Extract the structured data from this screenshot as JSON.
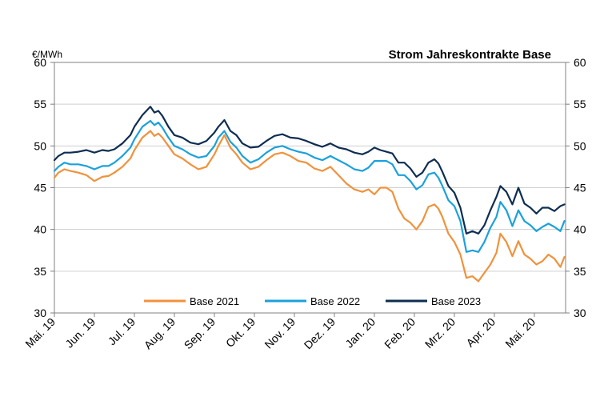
{
  "chart_data": {
    "type": "line",
    "title": "Strom Jahreskontrakte Base",
    "ylabel": "€/MWh",
    "xlabel": "",
    "ylim": [
      30,
      60
    ],
    "yticks": [
      30,
      35,
      40,
      45,
      50,
      55,
      60
    ],
    "xlim": [
      0,
      12.75
    ],
    "xticks": [
      {
        "label": "Mai. 19",
        "x": 0
      },
      {
        "label": "Jun. 19",
        "x": 1
      },
      {
        "label": "Jul. 19",
        "x": 2
      },
      {
        "label": "Aug. 19",
        "x": 3
      },
      {
        "label": "Sep. 19",
        "x": 4
      },
      {
        "label": "Okt. 19",
        "x": 5
      },
      {
        "label": "Nov. 19",
        "x": 6
      },
      {
        "label": "Dez. 19",
        "x": 7
      },
      {
        "label": "Jan. 20",
        "x": 8
      },
      {
        "label": "Feb. 20",
        "x": 9
      },
      {
        "label": "Mrz. 20",
        "x": 10
      },
      {
        "label": "Apr. 20",
        "x": 11
      },
      {
        "label": "Mai. 20",
        "x": 12
      }
    ],
    "grid": true,
    "legend_position": "bottom-center",
    "series": [
      {
        "name": "Base 2021",
        "color": "#F0923C",
        "x": [
          0,
          0.1,
          0.25,
          0.4,
          0.6,
          0.8,
          1.0,
          1.2,
          1.35,
          1.5,
          1.7,
          1.9,
          2.0,
          2.2,
          2.4,
          2.5,
          2.6,
          2.7,
          2.85,
          3.0,
          3.2,
          3.4,
          3.6,
          3.8,
          4.0,
          4.1,
          4.25,
          4.4,
          4.55,
          4.7,
          4.9,
          5.1,
          5.3,
          5.5,
          5.7,
          5.9,
          6.1,
          6.3,
          6.5,
          6.7,
          6.9,
          7.1,
          7.3,
          7.5,
          7.7,
          7.85,
          8.0,
          8.15,
          8.3,
          8.45,
          8.6,
          8.75,
          8.9,
          9.05,
          9.2,
          9.35,
          9.5,
          9.6,
          9.7,
          9.85,
          10.0,
          10.15,
          10.3,
          10.45,
          10.6,
          10.75,
          10.9,
          11.05,
          11.15,
          11.3,
          11.45,
          11.6,
          11.75,
          11.9,
          12.05,
          12.2,
          12.35,
          12.5,
          12.65,
          12.75
        ],
        "values": [
          46.2,
          46.8,
          47.2,
          47.0,
          46.8,
          46.5,
          45.8,
          46.3,
          46.4,
          46.8,
          47.5,
          48.5,
          49.5,
          51.0,
          51.8,
          51.2,
          51.5,
          51.0,
          50.0,
          49.0,
          48.5,
          47.8,
          47.2,
          47.5,
          49.0,
          50.0,
          51.3,
          49.8,
          49.0,
          48.0,
          47.2,
          47.5,
          48.3,
          49.0,
          49.2,
          48.8,
          48.2,
          48.0,
          47.3,
          47.0,
          47.5,
          46.5,
          45.5,
          44.8,
          44.5,
          44.8,
          44.2,
          45.0,
          45.0,
          44.5,
          42.5,
          41.3,
          40.8,
          40.0,
          41.0,
          42.7,
          43.0,
          42.5,
          41.5,
          39.5,
          38.5,
          37.0,
          34.2,
          34.4,
          33.8,
          34.8,
          35.8,
          37.2,
          39.5,
          38.5,
          36.8,
          38.6,
          37.0,
          36.5,
          35.8,
          36.2,
          37.0,
          36.5,
          35.5,
          36.7
        ]
      },
      {
        "name": "Base 2022",
        "color": "#1BA1DB",
        "x": [
          0,
          0.1,
          0.25,
          0.4,
          0.6,
          0.8,
          1.0,
          1.2,
          1.35,
          1.5,
          1.7,
          1.9,
          2.0,
          2.2,
          2.4,
          2.5,
          2.6,
          2.7,
          2.85,
          3.0,
          3.2,
          3.4,
          3.6,
          3.8,
          4.0,
          4.1,
          4.25,
          4.4,
          4.55,
          4.7,
          4.9,
          5.1,
          5.3,
          5.5,
          5.7,
          5.9,
          6.1,
          6.3,
          6.5,
          6.7,
          6.9,
          7.1,
          7.3,
          7.5,
          7.7,
          7.85,
          8.0,
          8.15,
          8.3,
          8.45,
          8.6,
          8.75,
          8.9,
          9.05,
          9.2,
          9.35,
          9.5,
          9.6,
          9.7,
          9.85,
          10.0,
          10.15,
          10.3,
          10.45,
          10.6,
          10.75,
          10.9,
          11.05,
          11.15,
          11.3,
          11.45,
          11.6,
          11.75,
          11.9,
          12.05,
          12.2,
          12.35,
          12.5,
          12.65,
          12.75
        ],
        "values": [
          47.0,
          47.5,
          48.0,
          47.8,
          47.8,
          47.6,
          47.2,
          47.6,
          47.6,
          48.0,
          48.8,
          49.8,
          50.8,
          52.3,
          53.0,
          52.5,
          52.8,
          52.2,
          51.0,
          50.0,
          49.6,
          49.0,
          48.6,
          48.8,
          50.0,
          51.0,
          51.8,
          50.5,
          49.8,
          48.8,
          48.0,
          48.4,
          49.2,
          49.8,
          50.0,
          49.6,
          49.3,
          49.1,
          48.6,
          48.3,
          48.8,
          48.3,
          47.8,
          47.2,
          47.0,
          47.4,
          48.2,
          48.2,
          48.2,
          47.8,
          46.5,
          46.5,
          45.8,
          44.8,
          45.3,
          46.6,
          46.8,
          46.2,
          45.2,
          43.5,
          42.8,
          41.0,
          37.3,
          37.5,
          37.3,
          38.5,
          40.2,
          41.5,
          43.3,
          42.3,
          40.4,
          42.3,
          41.0,
          40.5,
          39.8,
          40.3,
          40.7,
          40.3,
          39.8,
          41.0
        ]
      },
      {
        "name": "Base 2023",
        "color": "#0E2D52",
        "x": [
          0,
          0.1,
          0.25,
          0.4,
          0.6,
          0.8,
          1.0,
          1.2,
          1.35,
          1.5,
          1.7,
          1.9,
          2.0,
          2.2,
          2.4,
          2.5,
          2.6,
          2.7,
          2.85,
          3.0,
          3.2,
          3.4,
          3.6,
          3.8,
          4.0,
          4.1,
          4.25,
          4.4,
          4.55,
          4.7,
          4.9,
          5.1,
          5.3,
          5.5,
          5.7,
          5.9,
          6.1,
          6.3,
          6.5,
          6.7,
          6.9,
          7.1,
          7.3,
          7.5,
          7.7,
          7.85,
          8.0,
          8.15,
          8.3,
          8.45,
          8.6,
          8.75,
          8.9,
          9.05,
          9.2,
          9.35,
          9.5,
          9.6,
          9.7,
          9.85,
          10.0,
          10.15,
          10.3,
          10.45,
          10.6,
          10.75,
          10.9,
          11.05,
          11.15,
          11.3,
          11.45,
          11.6,
          11.75,
          11.9,
          12.05,
          12.2,
          12.35,
          12.5,
          12.65,
          12.75
        ],
        "values": [
          48.3,
          48.8,
          49.2,
          49.2,
          49.3,
          49.5,
          49.2,
          49.5,
          49.4,
          49.6,
          50.3,
          51.3,
          52.3,
          53.7,
          54.7,
          54.0,
          54.2,
          53.6,
          52.3,
          51.3,
          51.0,
          50.4,
          50.2,
          50.6,
          51.6,
          52.3,
          53.1,
          51.8,
          51.3,
          50.3,
          49.8,
          49.9,
          50.6,
          51.2,
          51.4,
          51.0,
          50.9,
          50.6,
          50.2,
          49.9,
          50.3,
          49.8,
          49.6,
          49.2,
          49.0,
          49.3,
          49.8,
          49.5,
          49.3,
          49.1,
          48.0,
          48.0,
          47.3,
          46.3,
          46.8,
          48.0,
          48.4,
          47.9,
          46.9,
          45.2,
          44.4,
          42.6,
          39.5,
          39.8,
          39.5,
          40.5,
          42.3,
          43.9,
          45.2,
          44.5,
          43.0,
          45.0,
          43.1,
          42.6,
          41.9,
          42.6,
          42.6,
          42.2,
          42.8,
          43.0
        ]
      }
    ]
  }
}
